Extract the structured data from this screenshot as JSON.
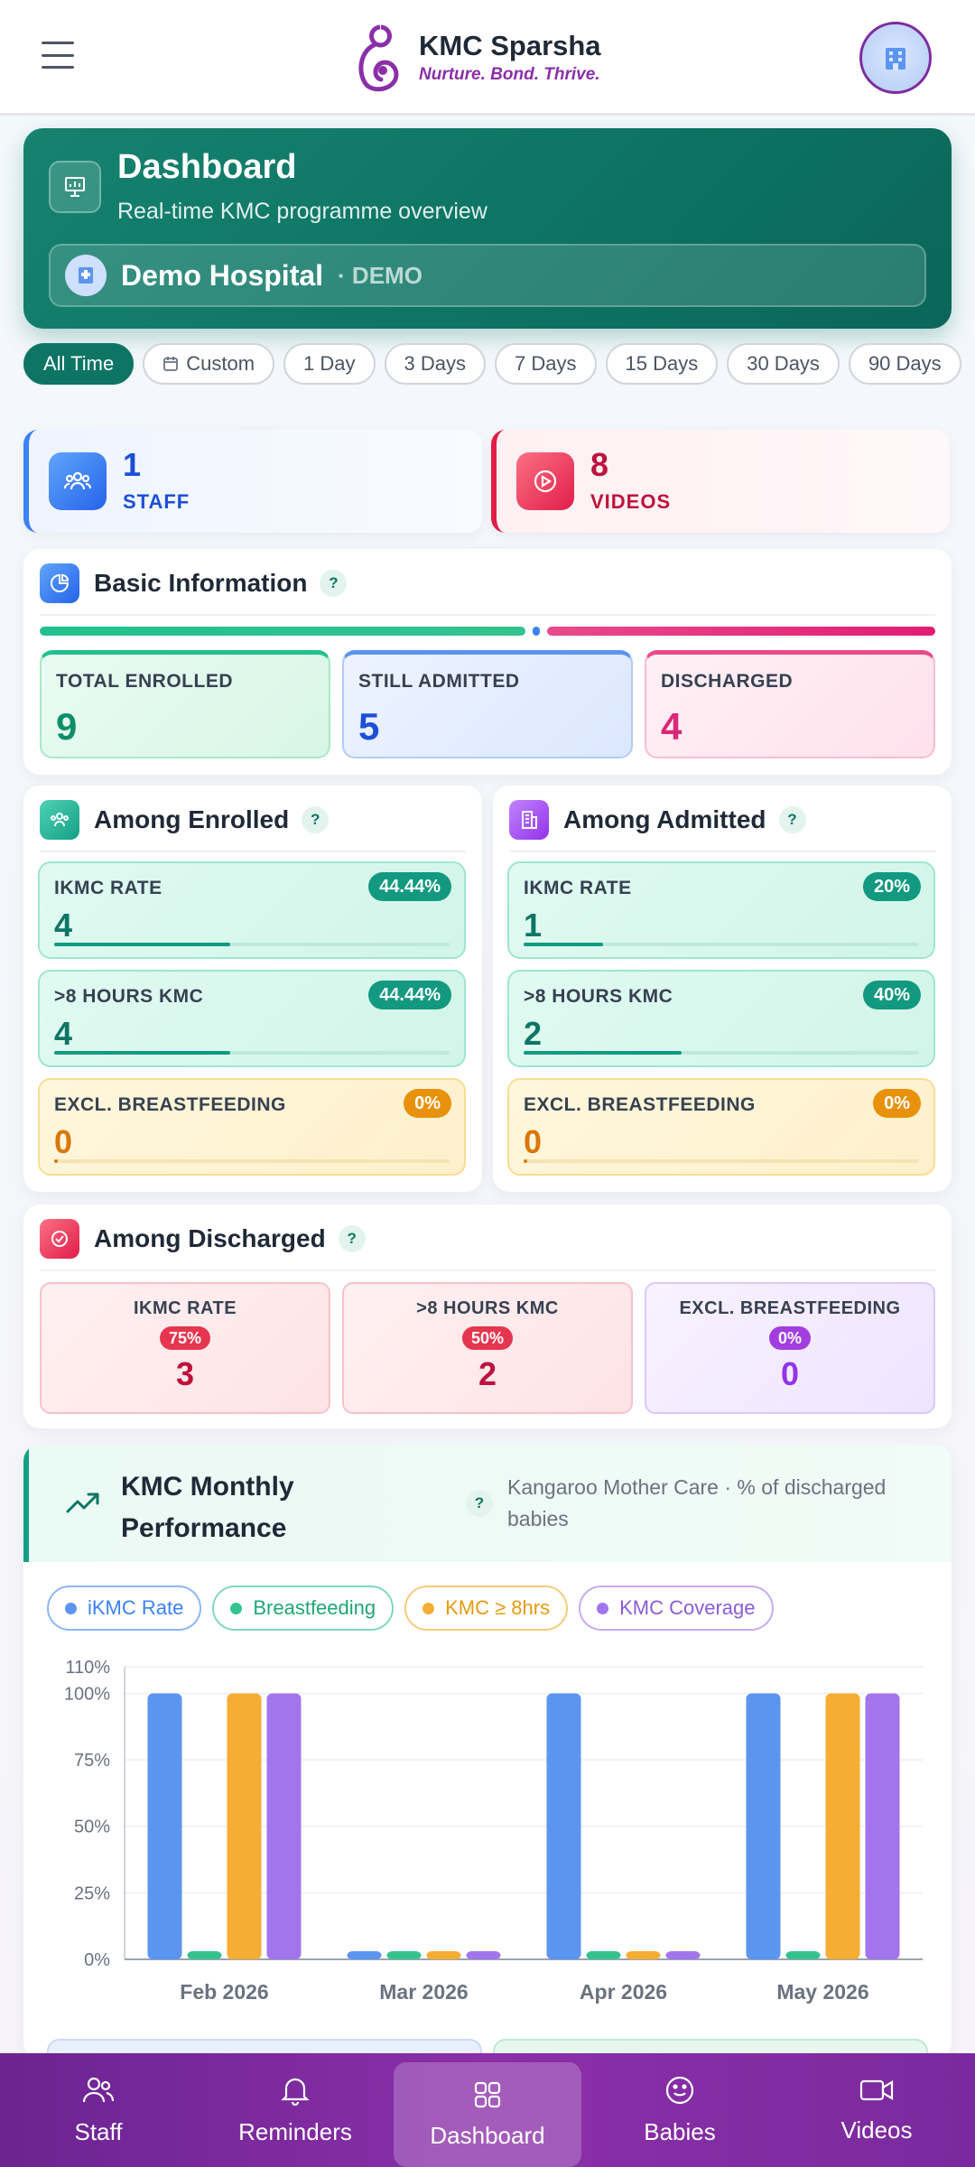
{
  "app": {
    "title": "KMC Sparsha",
    "tagline": "Nurture. Bond. Thrive."
  },
  "dashboard": {
    "title": "Dashboard",
    "subtitle": "Real-time KMC programme overview",
    "hospital_name": "Demo Hospital",
    "hospital_tag": "· DEMO"
  },
  "filters": {
    "selected": "All Time",
    "options": [
      "All Time",
      "Custom",
      "1 Day",
      "3 Days",
      "7 Days",
      "15 Days",
      "30 Days",
      "90 Days"
    ]
  },
  "stats": {
    "staff": {
      "value": "1",
      "label": "STAFF"
    },
    "videos": {
      "value": "8",
      "label": "VIDEOS"
    }
  },
  "basic": {
    "title": "Basic Information",
    "help": "?",
    "split": {
      "admitted_fraction": 0.5556,
      "discharged_fraction": 0.4444
    },
    "boxes": [
      {
        "label": "TOTAL ENROLLED",
        "value": "9"
      },
      {
        "label": "STILL ADMITTED",
        "value": "5"
      },
      {
        "label": "DISCHARGED",
        "value": "4"
      }
    ]
  },
  "enrolled": {
    "title": "Among Enrolled",
    "help": "?",
    "metrics": [
      {
        "label": "IKMC RATE",
        "badge": "44.44%",
        "value": "4",
        "fraction": 0.4444
      },
      {
        "label": ">8 HOURS KMC",
        "badge": "44.44%",
        "value": "4",
        "fraction": 0.4444
      },
      {
        "label": "EXCL. BREASTFEEDING",
        "badge": "0%",
        "value": "0",
        "fraction": 0
      }
    ]
  },
  "admitted": {
    "title": "Among Admitted",
    "help": "?",
    "metrics": [
      {
        "label": "IKMC RATE",
        "badge": "20%",
        "value": "1",
        "fraction": 0.2
      },
      {
        "label": ">8 HOURS KMC",
        "badge": "40%",
        "value": "2",
        "fraction": 0.4
      },
      {
        "label": "EXCL. BREASTFEEDING",
        "badge": "0%",
        "value": "0",
        "fraction": 0
      }
    ]
  },
  "discharged": {
    "title": "Among Discharged",
    "help": "?",
    "boxes": [
      {
        "label": "IKMC RATE",
        "badge": "75%",
        "value": "3"
      },
      {
        "label": ">8 HOURS KMC",
        "badge": "50%",
        "value": "2"
      },
      {
        "label": "EXCL. BREASTFEEDING",
        "badge": "0%",
        "value": "0"
      }
    ]
  },
  "performance": {
    "title": "KMC Monthly Performance",
    "help": "?",
    "subtitle": "Kangaroo Mother Care · % of discharged babies",
    "legend": [
      {
        "name": "iKMC Rate",
        "color": "#5b95ef"
      },
      {
        "name": "Breastfeeding",
        "color": "#34c38f"
      },
      {
        "name": "KMC ≥ 8hrs",
        "color": "#f5ad33"
      },
      {
        "name": "KMC Coverage",
        "color": "#a375ec"
      }
    ]
  },
  "chart_data": {
    "type": "bar",
    "categories": [
      "Feb 2026",
      "Mar 2026",
      "Apr 2026",
      "May 2026"
    ],
    "series": [
      {
        "name": "iKMC Rate",
        "color": "#5b95ef",
        "values": [
          100,
          0,
          100,
          100
        ]
      },
      {
        "name": "Breastfeeding",
        "color": "#34c38f",
        "values": [
          0,
          0,
          0,
          0
        ]
      },
      {
        "name": "KMC ≥ 8hrs",
        "color": "#f5ad33",
        "values": [
          100,
          0,
          0,
          100
        ]
      },
      {
        "name": "KMC Coverage",
        "color": "#a375ec",
        "values": [
          100,
          0,
          0,
          100
        ]
      }
    ],
    "yticks": [
      "0%",
      "25%",
      "50%",
      "75%",
      "100%",
      "110%"
    ],
    "ylim": [
      0,
      110
    ],
    "grid": true,
    "legend_position": "top"
  },
  "nav": {
    "items": [
      {
        "label": "Staff",
        "icon": "staff-icon"
      },
      {
        "label": "Reminders",
        "icon": "bell-icon"
      },
      {
        "label": "Dashboard",
        "icon": "grid-icon"
      },
      {
        "label": "Babies",
        "icon": "smile-icon"
      },
      {
        "label": "Videos",
        "icon": "video-icon"
      }
    ],
    "active": "Dashboard"
  }
}
